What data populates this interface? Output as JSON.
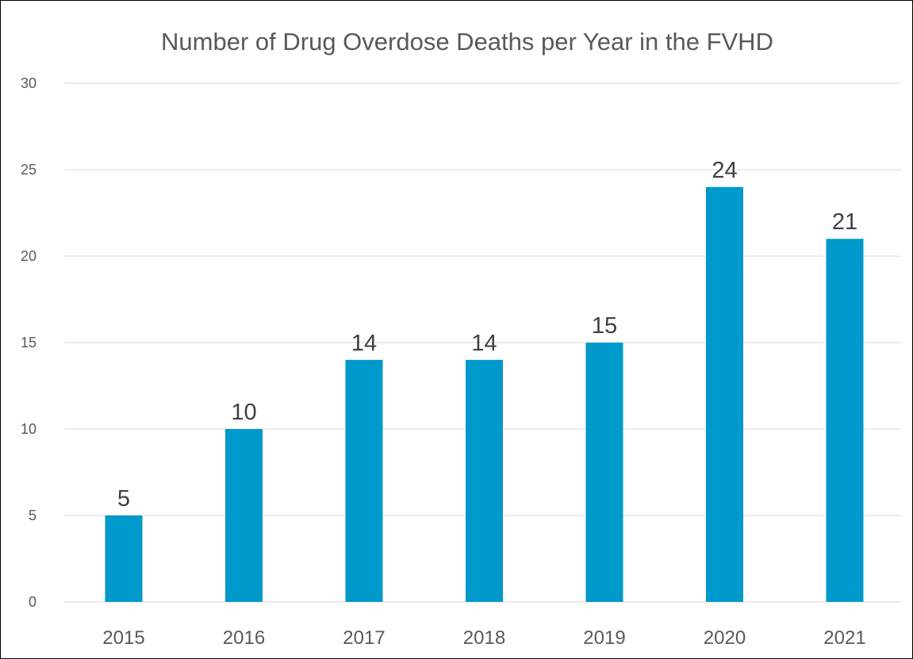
{
  "chart_data": {
    "type": "bar",
    "title": "Number of Drug Overdose Deaths per Year in the FVHD",
    "xlabel": "",
    "ylabel": "",
    "categories": [
      "2015",
      "2016",
      "2017",
      "2018",
      "2019",
      "2020",
      "2021"
    ],
    "values": [
      5,
      10,
      14,
      14,
      15,
      24,
      21
    ],
    "ylim": [
      0,
      30
    ],
    "yticks": [
      "0",
      "5",
      "10",
      "15",
      "20",
      "25",
      "30"
    ],
    "data_labels": [
      "5",
      "10",
      "14",
      "14",
      "15",
      "24",
      "21"
    ],
    "grid": true,
    "legend": "none",
    "colors": {
      "bar": "#0099CC"
    }
  }
}
